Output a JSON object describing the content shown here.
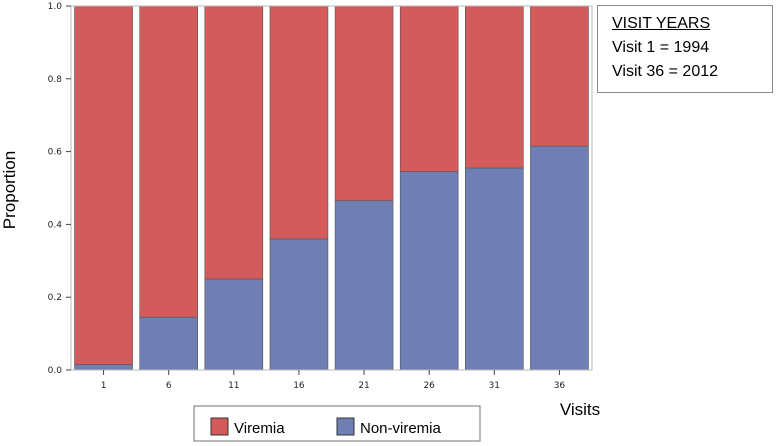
{
  "chart_data": {
    "type": "bar",
    "stacked": true,
    "categories": [
      "1",
      "6",
      "11",
      "16",
      "21",
      "26",
      "31",
      "36"
    ],
    "series": [
      {
        "name": "Non-viremia",
        "color": "#6f7fb5",
        "values": [
          0.015,
          0.145,
          0.25,
          0.36,
          0.465,
          0.545,
          0.555,
          0.615
        ]
      },
      {
        "name": "Viremia",
        "color": "#d35b5b",
        "values": [
          0.985,
          0.855,
          0.75,
          0.64,
          0.535,
          0.455,
          0.445,
          0.385
        ]
      }
    ],
    "xlabel": "Visits",
    "ylabel": "Proportion",
    "ylim": [
      0,
      1
    ],
    "yticks": [
      "0.0",
      "0.2",
      "0.4",
      "0.6",
      "0.8",
      "1.0"
    ],
    "legend": {
      "placement": "bottom-center",
      "entries": [
        "Viremia",
        "Non-viremia"
      ]
    },
    "annotation": {
      "title": "VISIT YEARS",
      "lines": [
        "Visit 1 = 1994",
        "Visit 36 = 2012"
      ]
    }
  }
}
